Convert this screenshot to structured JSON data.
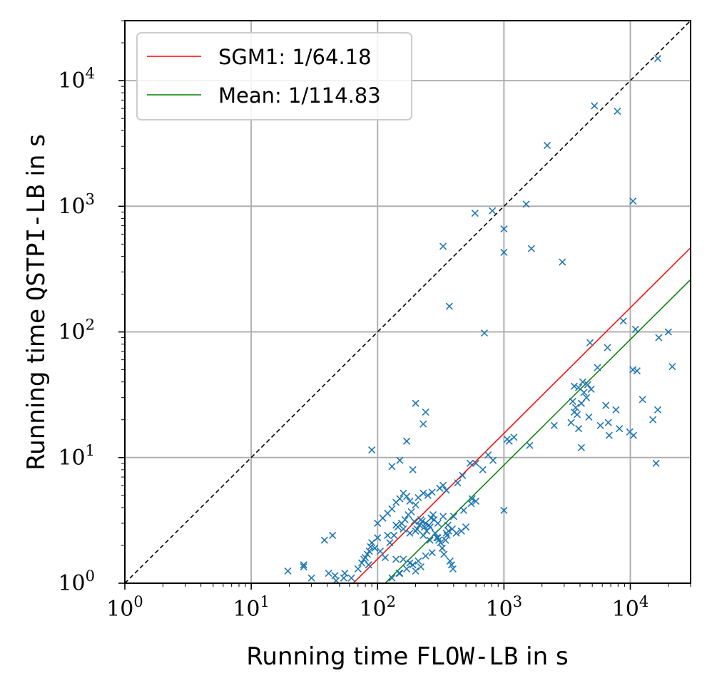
{
  "chart_data": {
    "type": "scatter",
    "title": "",
    "xlabel": {
      "prefix": "Running time ",
      "code": "FLOW-LB",
      "suffix": " in s"
    },
    "ylabel": {
      "prefix": "Running time ",
      "code": "QSTPI-LB",
      "suffix": " in s"
    },
    "xscale": "log",
    "yscale": "log",
    "xlim": [
      1,
      30000
    ],
    "ylim": [
      1,
      30000
    ],
    "grid": true,
    "ticks": [
      {
        "value": 1,
        "base": "10",
        "exp": "0"
      },
      {
        "value": 10,
        "base": "10",
        "exp": "1"
      },
      {
        "value": 100,
        "base": "10",
        "exp": "2"
      },
      {
        "value": 1000,
        "base": "10",
        "exp": "3"
      },
      {
        "value": 10000,
        "base": "10",
        "exp": "4"
      }
    ],
    "legend_position": "top-left",
    "colors": {
      "points": "#1f77b4",
      "sgm1": "#ff0000",
      "mean": "#008000",
      "diagonal": "#000000",
      "grid": "#b0b0b0"
    },
    "lines": [
      {
        "name": "diagonal",
        "label": "",
        "factor": 1,
        "style": "dashed",
        "color": "#000000"
      },
      {
        "name": "sgm1",
        "label": "SGM1:  1/64.18",
        "factor": 0.015581,
        "style": "solid",
        "color": "#ff0000"
      },
      {
        "name": "mean",
        "label": "Mean:  1/114.83",
        "factor": 0.0087085,
        "style": "solid",
        "color": "#008000"
      }
    ],
    "series": [
      {
        "name": "instances",
        "marker": "x",
        "x": [
          16500,
          5200,
          7900,
          2200,
          10500,
          1500,
          810,
          590,
          1000,
          330,
          1650,
          1000,
          2900,
          370,
          700,
          20000,
          11000,
          8800,
          4800,
          16800,
          21500,
          6600,
          5500,
          10500,
          11300,
          3600,
          4200,
          3900,
          4600,
          12500,
          16500,
          3500,
          4300,
          4900,
          3600,
          4500,
          6400,
          7700,
          3800,
          4100,
          3700,
          6700,
          5800,
          8200,
          9900,
          15100,
          2500,
          4700,
          3400,
          3900,
          6800,
          10600,
          4100,
          16000,
          200,
          240,
          230,
          170,
          150,
          90,
          130,
          190,
          330,
          540,
          750,
          1060,
          1200,
          1100,
          1600,
          820,
          600,
          680,
          470,
          430,
          350,
          310,
          270,
          250,
          230,
          210,
          200,
          180,
          170,
          160,
          150,
          140,
          130,
          120,
          110,
          100,
          220,
          240,
          260,
          280,
          300,
          330,
          360,
          390,
          420,
          460,
          500,
          560,
          600,
          550,
          480,
          400,
          350,
          300,
          260,
          230,
          200,
          180,
          160,
          140,
          120,
          100,
          90,
          80,
          75,
          85,
          95,
          105,
          115,
          125,
          135,
          145,
          155,
          165,
          175,
          185,
          195,
          205,
          215,
          225,
          235,
          245,
          255,
          265,
          275,
          285,
          295,
          305,
          315,
          325,
          335,
          345,
          355,
          365,
          375,
          385,
          395,
          200,
          220,
          180,
          160,
          240,
          270,
          210,
          190,
          170,
          150,
          130,
          1000,
          19.5,
          26,
          26,
          30,
          38,
          44,
          41,
          47,
          46,
          54,
          55,
          62,
          70,
          78,
          83,
          86,
          88,
          140,
          148
        ],
        "y": [
          15000,
          6300,
          5700,
          3050,
          1100,
          1040,
          920,
          880,
          660,
          480,
          460,
          430,
          360,
          160,
          98,
          100,
          105,
          122,
          82,
          90,
          53,
          75,
          52,
          50,
          49,
          37,
          40,
          36,
          38,
          29,
          24,
          28,
          33,
          35,
          23,
          30,
          26,
          24,
          22,
          27,
          25,
          19,
          18,
          17,
          16,
          20,
          18,
          21,
          19,
          17,
          15,
          15,
          12,
          9,
          27,
          23,
          18.5,
          13.5,
          9.5,
          11.5,
          8.5,
          8,
          6,
          9,
          10.5,
          14,
          14.5,
          13.5,
          12.5,
          9.5,
          9,
          8,
          7.2,
          6.3,
          5.5,
          5.7,
          5.3,
          5,
          5.2,
          4.8,
          4.2,
          4.5,
          4.9,
          5.2,
          4.7,
          4.4,
          3.9,
          3.6,
          3.3,
          3,
          3.2,
          3,
          2.8,
          3.2,
          3,
          3.4,
          2.9,
          2.7,
          2.5,
          2.6,
          2.8,
          4.7,
          4.5,
          4.3,
          3.8,
          3.4,
          2.5,
          2.3,
          2.2,
          2.4,
          2.6,
          2.5,
          2.7,
          2.9,
          2.4,
          2.3,
          2.1,
          1.6,
          1.45,
          1.4,
          1.9,
          1.8,
          1.6,
          2.1,
          2.4,
          2.8,
          3,
          3.2,
          3.5,
          3.7,
          3.1,
          2.7,
          2.9,
          3.1,
          2.8,
          2.6,
          2.9,
          3.3,
          3.5,
          2.5,
          2.3,
          2.2,
          2.1,
          1.9,
          1.7,
          2.2,
          2.4,
          2.6,
          1.5,
          1.4,
          1.3,
          1.25,
          1.35,
          1.45,
          1.55,
          1.65,
          1.75,
          1.5,
          1.4,
          1.3,
          1.2,
          1.1,
          3.8,
          1.25,
          1.4,
          1.35,
          1.1,
          2.2,
          2.4,
          1.2,
          1.05,
          1.15,
          1.1,
          1.2,
          1.1,
          1.3,
          1.55,
          1.7,
          1.8,
          1.95,
          1.55,
          1.2
        ]
      }
    ]
  }
}
